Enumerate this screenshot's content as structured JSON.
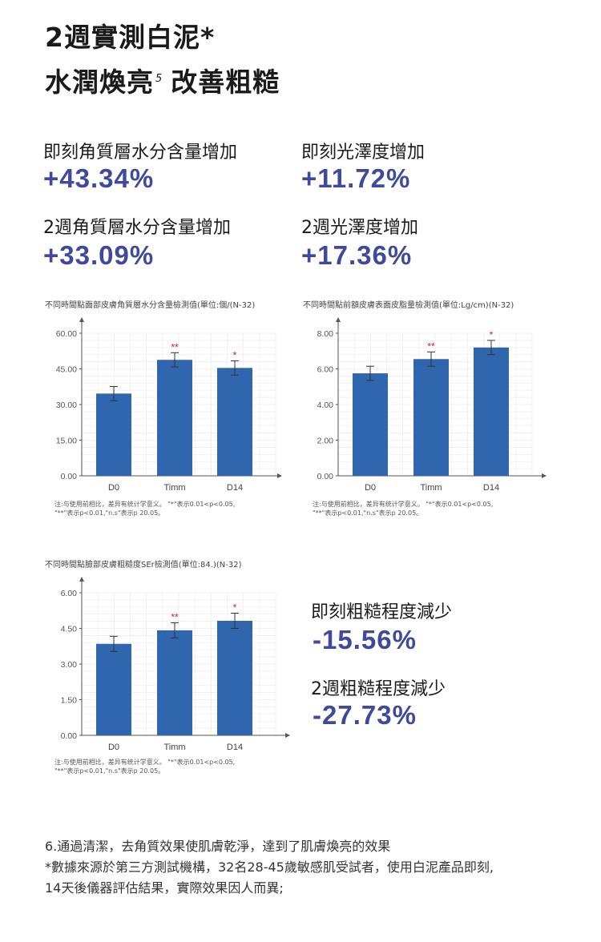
{
  "headline": {
    "line1": "2週實測白泥*",
    "line2_part1": "水潤煥亮",
    "line2_sup": "5",
    "line2_part2": "改善粗糙"
  },
  "stats": {
    "instant_moisture": {
      "label": "即刻角質層水分含量增加",
      "value": "+43.34%"
    },
    "instant_gloss": {
      "label": "即刻光澤度增加",
      "value": "+11.72%"
    },
    "week2_moisture": {
      "label": "2週角質層水分含量增加",
      "value": "+33.09%"
    },
    "week2_gloss": {
      "label": "2週光澤度增加",
      "value": "+17.36%"
    },
    "instant_roughness": {
      "label": "即刻粗糙程度減少",
      "value": "-15.56%"
    },
    "week2_roughness": {
      "label": "2週粗糙程度減少",
      "value": "-27.73%"
    }
  },
  "notes": {
    "line1": "注:与使用前相比，差异有统计学意义。 \"*\"表示0.01<p<0.05,",
    "line2": "\"**\"表示p<0.01,\"n.s\"表示p 20.05。"
  },
  "footnote": {
    "line1": "6.通過清潔，去角質效果使肌膚乾淨，達到了肌膚煥亮的效果",
    "line2": "*數據來源於第三方測試機構，32名28-45歲敏感肌受試者，使用白泥產品即刻,",
    "line3": "14天後儀器評估結果，實際效果因人而異;"
  },
  "colors": {
    "bar": "#2f66ad",
    "accent": "#3f4a9c",
    "star": "#e02020"
  },
  "chart_data": [
    {
      "type": "bar",
      "title": "不同時間點面部皮膚角質層水分含量檢測值(單位:個/(N-32)",
      "categories": [
        "D0",
        "Timm",
        "D14"
      ],
      "values": [
        34.6,
        48.8,
        45.4
      ],
      "errors": [
        3.0,
        3.0,
        3.0
      ],
      "significance": [
        "",
        "**",
        "*"
      ],
      "ylim": [
        0,
        60
      ],
      "yticks": [
        "0.00",
        "15.00",
        "30.00",
        "45.00",
        "60.00"
      ],
      "grid": true
    },
    {
      "type": "bar",
      "title": "不同時間點前額皮膚表面皮脂量檢測值(單位:Lg/cm)(N-32)",
      "categories": [
        "D0",
        "Timm",
        "D14"
      ],
      "values": [
        5.75,
        6.55,
        7.2
      ],
      "errors": [
        0.4,
        0.4,
        0.4
      ],
      "significance": [
        "",
        "**",
        "*"
      ],
      "ylim": [
        0,
        8
      ],
      "yticks": [
        "0.00",
        "2.00",
        "4.00",
        "6.00",
        "8.00"
      ],
      "grid": true
    },
    {
      "type": "bar",
      "title": "不同時間點臉部皮膚粗糙度SEr檢測值(單位:84.)(N-32)",
      "categories": [
        "D0",
        "Timm",
        "D14"
      ],
      "values": [
        3.85,
        4.42,
        4.82
      ],
      "errors": [
        0.32,
        0.32,
        0.32
      ],
      "significance": [
        "",
        "**",
        "*"
      ],
      "ylim": [
        0,
        6
      ],
      "yticks": [
        "0.00",
        "1.50",
        "3.00",
        "4.50",
        "6.00"
      ],
      "grid": true
    }
  ]
}
